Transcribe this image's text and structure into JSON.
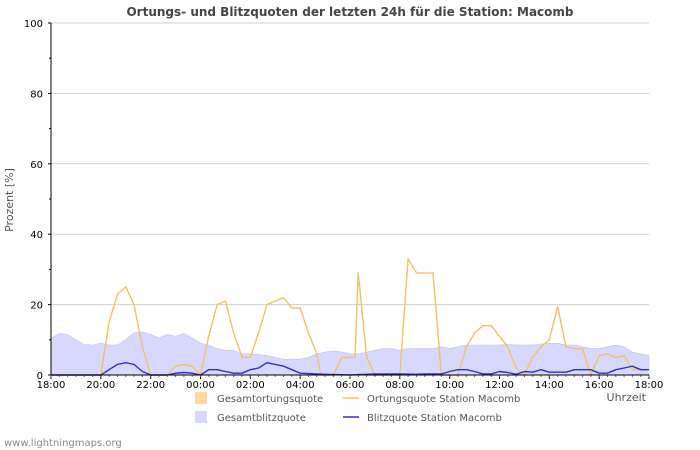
{
  "chart_data": {
    "type": "area",
    "title": "Ortungs- und Blitzquoten der letzten 24h für die Station: Macomb",
    "ylabel": "Prozent   [%]",
    "xlabel": "Uhrzeit",
    "ylim": [
      0,
      100
    ],
    "yticks": [
      0,
      20,
      40,
      60,
      80,
      100
    ],
    "xlim": [
      0,
      24
    ],
    "xticks": [
      0,
      2,
      4,
      6,
      8,
      10,
      12,
      14,
      16,
      18,
      20,
      22,
      24
    ],
    "xtick_labels": [
      "18:00",
      "20:00",
      "22:00",
      "00:00",
      "02:00",
      "04:00",
      "06:00",
      "08:00",
      "10:00",
      "12:00",
      "14:00",
      "16:00",
      "18:00"
    ],
    "grid": true,
    "colors": {
      "gesamtortung": "#ffd89a",
      "ortung_station": "#f5c060",
      "gesamtblitz": "#d8d8ff",
      "blitz_station": "#3030cc"
    },
    "series": [
      {
        "name": "Gesamtblitzquote",
        "kind": "area",
        "x": [
          0,
          0.33,
          0.67,
          1,
          1.33,
          1.67,
          2,
          2.33,
          2.67,
          3,
          3.33,
          3.67,
          4,
          4.33,
          4.67,
          5,
          5.33,
          5.67,
          6,
          6.33,
          6.67,
          7,
          7.33,
          7.67,
          8,
          8.33,
          8.67,
          9,
          9.33,
          9.67,
          10,
          10.33,
          10.67,
          11,
          11.33,
          11.67,
          12,
          12.33,
          12.67,
          13,
          13.33,
          13.67,
          14,
          14.33,
          14.67,
          15,
          15.33,
          15.67,
          16,
          16.33,
          16.67,
          17,
          17.33,
          17.67,
          18,
          18.33,
          18.67,
          19,
          19.33,
          19.67,
          20,
          20.33,
          20.67,
          21,
          21.33,
          21.67,
          22,
          22.33,
          22.67,
          23,
          23.33,
          23.67,
          24
        ],
        "values": [
          10.5,
          11.8,
          11.5,
          10,
          8.7,
          8.5,
          9,
          8.5,
          8.5,
          10,
          12,
          12.2,
          11.5,
          10.5,
          11.5,
          11,
          11.8,
          10.5,
          9,
          8.5,
          7.5,
          7,
          7,
          6,
          6,
          5.8,
          5.5,
          5,
          4.5,
          4.5,
          4.5,
          5,
          6,
          6.5,
          6.8,
          6.5,
          6,
          6,
          6.5,
          7,
          7.5,
          7.5,
          7,
          7.5,
          7.5,
          7.5,
          7.5,
          8,
          7.5,
          8,
          8.5,
          8.5,
          8.5,
          8.5,
          8.5,
          8.7,
          8.5,
          8.5,
          8.5,
          8.8,
          9,
          9,
          8.5,
          8.5,
          8,
          7.5,
          7.5,
          8,
          8.5,
          8,
          6.5,
          6,
          5.5
        ]
      },
      {
        "name": "Ortungsquote Station Macomb",
        "kind": "line",
        "x": [
          0,
          0.5,
          1,
          1.5,
          2,
          2.33,
          2.67,
          3,
          3.33,
          3.67,
          4,
          4.33,
          4.67,
          5,
          5.33,
          5.67,
          6,
          6.33,
          6.67,
          7,
          7.33,
          7.67,
          8,
          8.33,
          8.67,
          9,
          9.33,
          9.67,
          10,
          10.33,
          10.67,
          10.83,
          11,
          11.33,
          11.67,
          12,
          12.2,
          12.33,
          12.67,
          13,
          13.33,
          13.67,
          14,
          14.33,
          14.67,
          15,
          15.33,
          15.67,
          16,
          16.33,
          16.67,
          17,
          17.33,
          17.67,
          18,
          18.33,
          18.67,
          19,
          19.33,
          19.67,
          20,
          20.33,
          20.67,
          21,
          21.33,
          21.67,
          22,
          22.33,
          22.67,
          23,
          23.33,
          23.67,
          24
        ],
        "values": [
          0,
          0,
          0,
          0,
          0,
          15,
          23,
          25,
          20,
          8,
          0,
          0,
          0,
          2.5,
          3,
          2.5,
          0,
          11,
          20,
          21,
          12,
          5,
          5,
          12,
          20,
          21,
          22,
          19,
          19,
          12,
          6,
          0,
          0,
          0,
          5,
          5,
          5,
          29,
          5,
          0,
          0,
          0,
          0,
          33,
          29,
          29,
          29,
          0,
          0,
          0,
          8,
          12,
          14,
          14,
          11,
          8,
          2,
          0,
          5,
          8,
          10,
          19.5,
          8,
          7.5,
          7.5,
          0,
          5.5,
          6,
          5,
          5.5,
          1.5,
          1.5,
          1.5
        ]
      },
      {
        "name": "Blitzquote Station Macomb",
        "kind": "line",
        "x": [
          0,
          1,
          2,
          2.33,
          2.67,
          3,
          3.33,
          3.67,
          4,
          4.67,
          5,
          5.33,
          5.67,
          6,
          6.33,
          6.67,
          7,
          7.33,
          7.67,
          8,
          8.33,
          8.67,
          9,
          9.33,
          9.67,
          10,
          10.67,
          11,
          12,
          13,
          14,
          14.67,
          15,
          15.33,
          15.67,
          16,
          16.33,
          16.67,
          17,
          17.33,
          17.67,
          18,
          18.33,
          18.67,
          19,
          19.33,
          19.67,
          20,
          20.67,
          21,
          21.67,
          22,
          22.33,
          22.67,
          23,
          23.33,
          23.67,
          24
        ],
        "values": [
          0,
          0,
          0,
          1.5,
          3,
          3.5,
          3,
          1,
          0,
          0,
          0.5,
          0.7,
          0.5,
          0,
          1.5,
          1.5,
          1,
          0.5,
          0.5,
          1.5,
          2,
          3.5,
          3,
          2.5,
          1.5,
          0.5,
          0.3,
          0.2,
          0,
          0.3,
          0.3,
          0.2,
          0.3,
          0.3,
          0.3,
          1,
          1.5,
          1.5,
          1,
          0.3,
          0.3,
          1,
          0.7,
          0.2,
          1,
          0.8,
          1.5,
          0.8,
          0.8,
          1.5,
          1.5,
          0.5,
          0.5,
          1.5,
          2,
          2.5,
          1.5,
          1.5
        ]
      }
    ],
    "legend": {
      "position": "bottom",
      "items": [
        {
          "label": "Gesamtortungsquote",
          "kind": "area",
          "color_key": "gesamtortung"
        },
        {
          "label": "Ortungsquote Station Macomb",
          "kind": "line",
          "color_key": "ortung_station"
        },
        {
          "label": "Gesamtblitzquote",
          "kind": "area",
          "color_key": "gesamtblitz"
        },
        {
          "label": "Blitzquote Station Macomb",
          "kind": "line",
          "color_key": "blitz_station"
        }
      ]
    }
  },
  "footer": "www.lightningmaps.org"
}
